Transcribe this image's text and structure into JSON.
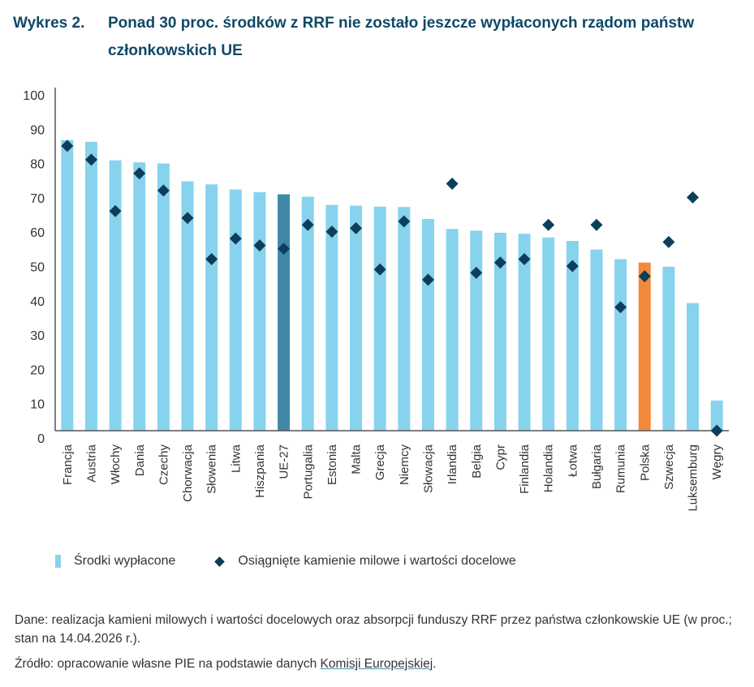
{
  "title": {
    "figure_label": "Wykres 2.",
    "text": "Ponad 30 proc. środków z RRF nie zostało jeszcze wypłaconych rządom państw członkowskich UE"
  },
  "colors": {
    "bar": "#87d3ee",
    "bar_eu": "#4088a8",
    "bar_pl": "#f28a3b",
    "diamond": "#0d3f5a",
    "title": "#0f4966",
    "axis": "#555555"
  },
  "chart_data": {
    "type": "bar",
    "title": "Ponad 30 proc. środków z RRF nie zostało jeszcze wypłaconych rządom państw członkowskich UE",
    "xlabel": "",
    "ylabel": "",
    "ylim": [
      0,
      100
    ],
    "yticks": [
      0,
      10,
      20,
      30,
      40,
      50,
      60,
      70,
      80,
      90,
      100
    ],
    "grid": false,
    "legend_position": "bottom-left",
    "categories": [
      "Francja",
      "Austria",
      "Włochy",
      "Dania",
      "Czechy",
      "Chorwacja",
      "Słowenia",
      "Litwa",
      "Hiszpania",
      "UE-27",
      "Portugalia",
      "Estonia",
      "Malta",
      "Grecja",
      "Niemcy",
      "Słowacja",
      "Irlandia",
      "Belgia",
      "Cypr",
      "Finlandia",
      "Holandia",
      "Łotwa",
      "Bułgaria",
      "Rumunia",
      "Polska",
      "Szwecja",
      "Luksemburg",
      "Węgry"
    ],
    "highlight": {
      "UE-27": "bar_eu",
      "Polska": "bar_pl"
    },
    "series": [
      {
        "name": "Środki wypłacone",
        "type": "bar",
        "values": [
          84.7,
          84.2,
          78.8,
          78.2,
          77.9,
          72.7,
          71.8,
          70.3,
          69.5,
          68.9,
          68.2,
          65.8,
          65.6,
          65.3,
          65.2,
          61.7,
          58.8,
          58.3,
          57.7,
          57.4,
          56.3,
          55.3,
          52.8,
          50.0,
          49.0,
          47.8,
          37.2,
          8.8
        ]
      },
      {
        "name": "Osiągnięte kamienie milowe i wartości docelowe",
        "type": "scatter",
        "marker": "diamond",
        "values": [
          83,
          79,
          64,
          75,
          70,
          62,
          50,
          56,
          54,
          53,
          60,
          58,
          59,
          47,
          61,
          44,
          72,
          46,
          49,
          50,
          60,
          48,
          60,
          36,
          45,
          55,
          68,
          0
        ]
      }
    ]
  },
  "legend": {
    "bar_label": "Środki wypłacone",
    "diamond_label": "Osiągnięte kamienie milowe i wartości docelowe"
  },
  "notes": {
    "data": "Dane: realizacja kamieni milowych i wartości docelowych oraz absorpcji funduszy RRF przez państwa członkowskie UE (w proc.; stan na 14.04.2026 r.).",
    "source_prefix": "Źródło: opracowanie własne PIE na podstawie danych ",
    "source_link": "Komisji Europejskiej",
    "source_suffix": "."
  }
}
